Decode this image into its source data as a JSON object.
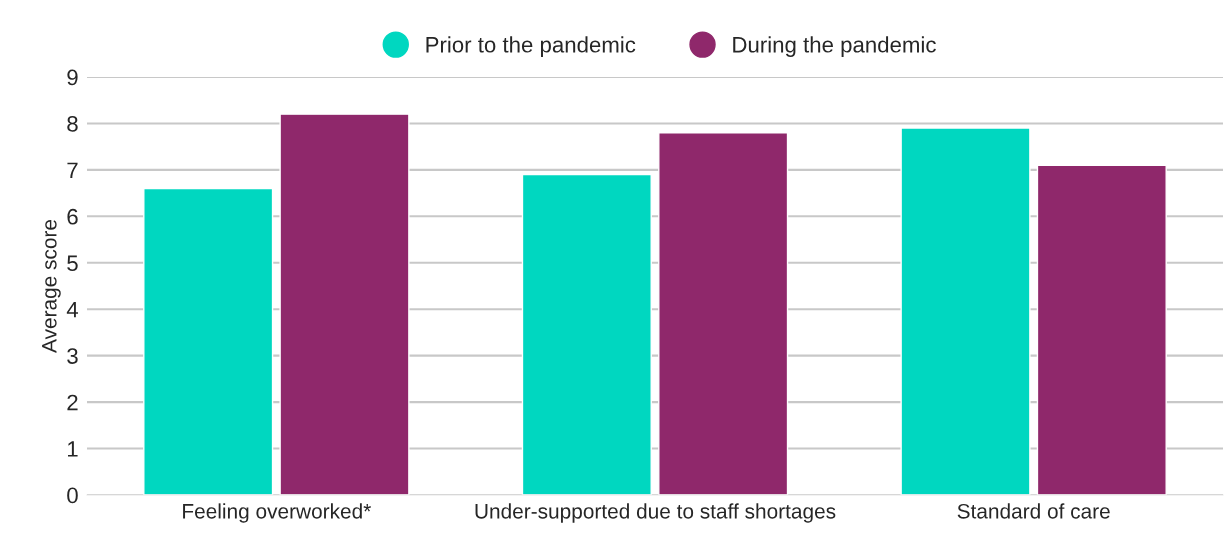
{
  "chart_data": {
    "type": "bar",
    "ylabel": "Average score",
    "categories": [
      "Feeling overworked*",
      "Under-supported due to staff shortages",
      "Standard of care"
    ],
    "series": [
      {
        "name": "Prior to the pandemic",
        "color": "#00d7c0",
        "values": [
          6.6,
          6.9,
          7.9
        ]
      },
      {
        "name": "During the pandemic",
        "color": "#8f286b",
        "values": [
          8.2,
          7.8,
          7.1
        ]
      }
    ],
    "ylim": [
      0,
      9
    ],
    "yticks": [
      0,
      1,
      2,
      3,
      4,
      5,
      6,
      7,
      8,
      9
    ],
    "grid": "y",
    "legend": "top"
  }
}
